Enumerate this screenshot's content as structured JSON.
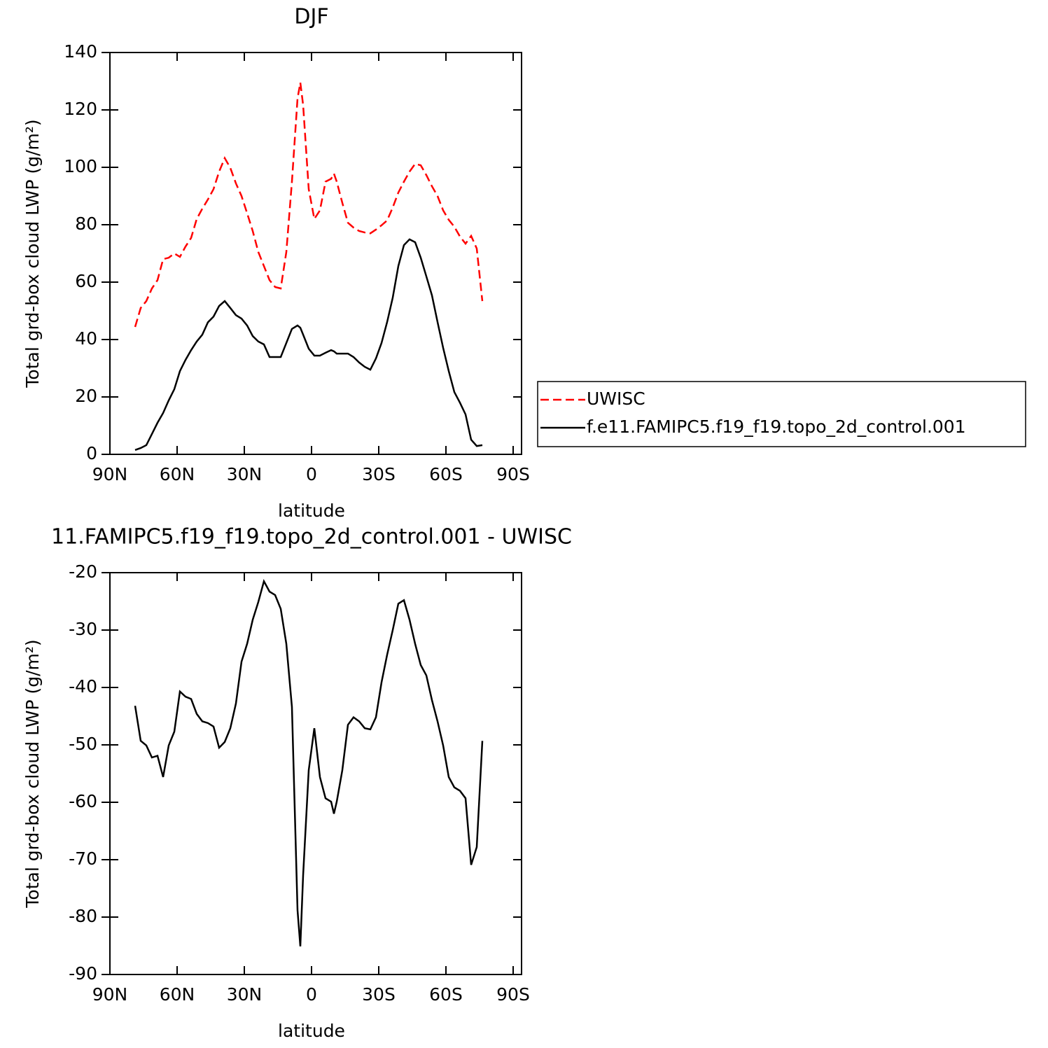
{
  "chart_data": [
    {
      "type": "line",
      "title": "DJF",
      "x_label": "latitude",
      "y_label": "Total grd-box cloud LWP (g/m²)",
      "xlim": [
        90,
        -90
      ],
      "xticks": [
        {
          "value": 90,
          "label": "90N"
        },
        {
          "value": 60,
          "label": "60N"
        },
        {
          "value": 30,
          "label": "30N"
        },
        0,
        {
          "value": -30,
          "label": "30S"
        },
        {
          "value": -60,
          "label": "60S"
        },
        {
          "value": -90,
          "label": "90S"
        }
      ],
      "ylim": [
        0,
        140
      ],
      "yticks": [
        0,
        20,
        40,
        60,
        80,
        100,
        120,
        140
      ],
      "legend": "right",
      "x": [
        78.75,
        76.25,
        73.75,
        71.25,
        68.75,
        66.25,
        63.75,
        61.25,
        58.75,
        56.25,
        53.75,
        51.25,
        48.75,
        46.25,
        43.75,
        41.25,
        38.75,
        36.25,
        33.75,
        31.25,
        28.75,
        26.25,
        23.75,
        21.25,
        18.75,
        16.25,
        13.75,
        11.25,
        8.75,
        6.25,
        5,
        3.75,
        1.25,
        -1.25,
        -3.75,
        -6.25,
        -8.75,
        -10,
        -11.25,
        -13.75,
        -16.25,
        -18.75,
        -21.25,
        -23.75,
        -26.25,
        -28.75,
        -31.25,
        -33.75,
        -36.25,
        -38.75,
        -41.25,
        -43.75,
        -46.25,
        -48.75,
        -51.25,
        -53.75,
        -56.25,
        -58.75,
        -61.25,
        -63.75,
        -66.25,
        -68.75,
        -71.25,
        -73.75,
        -76.25
      ],
      "series": [
        {
          "name": "UWISC",
          "color": "#ff0000",
          "line_style": "dashed",
          "values": [
            44.4,
            51,
            53.4,
            57.8,
            60.7,
            68,
            68.5,
            70,
            68.8,
            72.4,
            75.4,
            82,
            85.6,
            88.8,
            92.4,
            98.5,
            103.2,
            99.8,
            94.4,
            90,
            84,
            77.8,
            70.5,
            65.6,
            60.7,
            58.3,
            57.8,
            70.5,
            95,
            124,
            129.5,
            121.7,
            92.4,
            82,
            85,
            95,
            96,
            97.8,
            95,
            87.6,
            80.7,
            79,
            77.8,
            77.3,
            77,
            78.3,
            79.8,
            81.5,
            86,
            91.2,
            95,
            98.5,
            101.2,
            100.7,
            97.3,
            93.4,
            90,
            85,
            81.7,
            79.3,
            75.9,
            73.4,
            76.1,
            71.7,
            53.4
          ]
        },
        {
          "name": "f.e11.FAMIPC5.f19_f19.topo_2d_control.001",
          "color": "#000000",
          "line_style": "solid",
          "values": [
            1.5,
            2.2,
            3.2,
            7.1,
            11,
            14.4,
            18.8,
            22.7,
            29,
            32.9,
            36.3,
            39.3,
            41.7,
            46,
            48,
            51.7,
            53.4,
            51,
            48.5,
            47.3,
            44.9,
            41.2,
            39.3,
            38.3,
            33.9,
            33.9,
            33.9,
            38.8,
            43.7,
            44.9,
            44.1,
            41.7,
            36.8,
            34.4,
            34.4,
            35.4,
            36.3,
            35.9,
            35.1,
            35.1,
            35.1,
            33.9,
            32,
            30.5,
            29.5,
            33.4,
            38.8,
            46.1,
            54.6,
            65.6,
            72.9,
            74.9,
            73.9,
            68.5,
            62,
            55.4,
            46.1,
            37.1,
            29,
            21.7,
            18,
            13.9,
            5.1,
            2.9,
            3.2
          ]
        }
      ]
    },
    {
      "type": "line",
      "title": "11.FAMIPC5.f19_f19.topo_2d_control.001 - UWISC",
      "x_label": "latitude",
      "y_label": "Total grd-box cloud LWP (g/m²)",
      "xlim": [
        90,
        -90
      ],
      "xticks": [
        {
          "value": 90,
          "label": "90N"
        },
        {
          "value": 60,
          "label": "60N"
        },
        {
          "value": 30,
          "label": "30N"
        },
        0,
        {
          "value": -30,
          "label": "30S"
        },
        {
          "value": -60,
          "label": "60S"
        },
        {
          "value": -90,
          "label": "90S"
        }
      ],
      "ylim": [
        -90,
        -20
      ],
      "yticks": [
        -90,
        -80,
        -70,
        -60,
        -50,
        -40,
        -30,
        -20
      ],
      "x": [
        78.75,
        76.25,
        73.75,
        71.25,
        68.75,
        66.25,
        63.75,
        61.25,
        58.75,
        56.25,
        53.75,
        51.25,
        48.75,
        46.25,
        43.75,
        41.25,
        38.75,
        36.25,
        33.75,
        31.25,
        28.75,
        26.25,
        23.75,
        21.25,
        18.75,
        16.25,
        13.75,
        11.25,
        8.75,
        6.25,
        5,
        3.75,
        1.25,
        -1.25,
        -3.75,
        -6.25,
        -8.75,
        -10,
        -11.25,
        -13.75,
        -16.25,
        -18.75,
        -21.25,
        -23.75,
        -26.25,
        -28.75,
        -31.25,
        -33.75,
        -36.25,
        -38.75,
        -41.25,
        -43.75,
        -46.25,
        -48.75,
        -51.25,
        -53.75,
        -56.25,
        -58.75,
        -61.25,
        -63.75,
        -66.25,
        -68.75,
        -71.25,
        -73.75,
        -76.25
      ],
      "color": "#000000",
      "values": [
        -43.2,
        -49.3,
        -50.1,
        -52.2,
        -51.9,
        -55.6,
        -50.1,
        -47.7,
        -40.7,
        -41.6,
        -42,
        -44.6,
        -45.9,
        -46.2,
        -46.8,
        -50.5,
        -49.5,
        -47.1,
        -42.8,
        -35.5,
        -32.4,
        -28.2,
        -25.1,
        -21.5,
        -23.3,
        -23.9,
        -26.3,
        -32.4,
        -43.4,
        -78.8,
        -85.1,
        -72.7,
        -54.4,
        -47.1,
        -55.6,
        -59.3,
        -59.9,
        -62,
        -59.9,
        -54.4,
        -46.5,
        -45.2,
        -45.9,
        -47.1,
        -47.3,
        -45.2,
        -39.1,
        -34.3,
        -30,
        -25.4,
        -24.8,
        -28.2,
        -32.4,
        -36.1,
        -37.9,
        -42.2,
        -45.9,
        -50.1,
        -55.6,
        -57.4,
        -58,
        -59.3,
        -70.9,
        -67.8,
        -49.3
      ]
    }
  ]
}
